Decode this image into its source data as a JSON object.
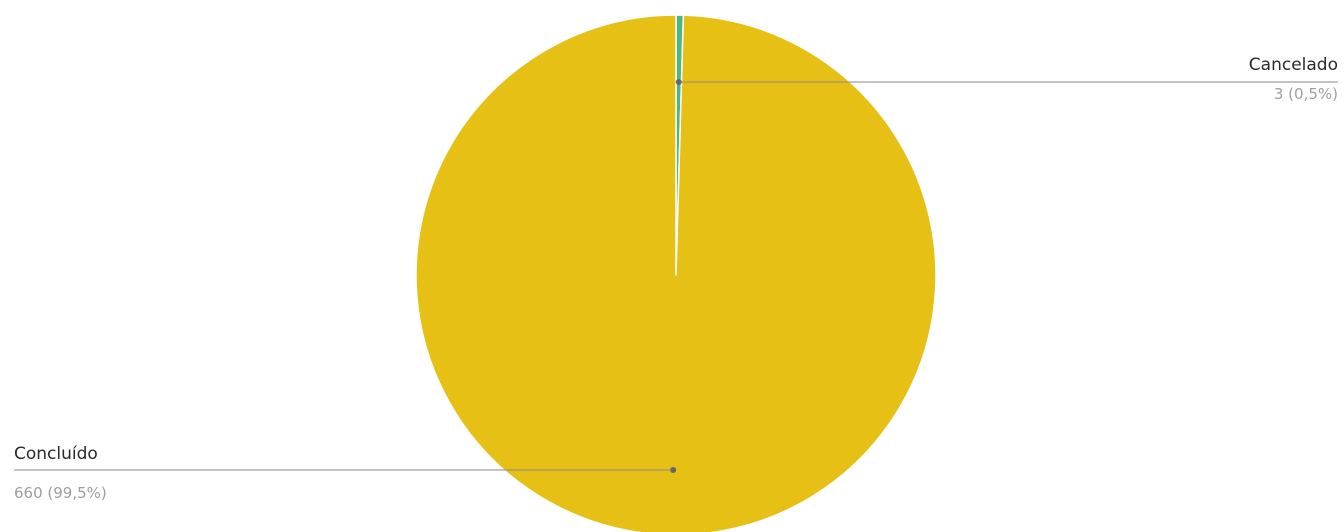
{
  "chart_data": {
    "type": "pie",
    "slices": [
      {
        "label": "Cancelado",
        "value": 3,
        "value_text": "3 (0,5%)",
        "color": "#4cb782"
      },
      {
        "label": "Concluído",
        "value": 660,
        "value_text": "660 (99,5%)",
        "color": "#e6c014"
      }
    ],
    "leader_color": "#8a8a8a",
    "slice_separator_color": "#ffffff"
  }
}
